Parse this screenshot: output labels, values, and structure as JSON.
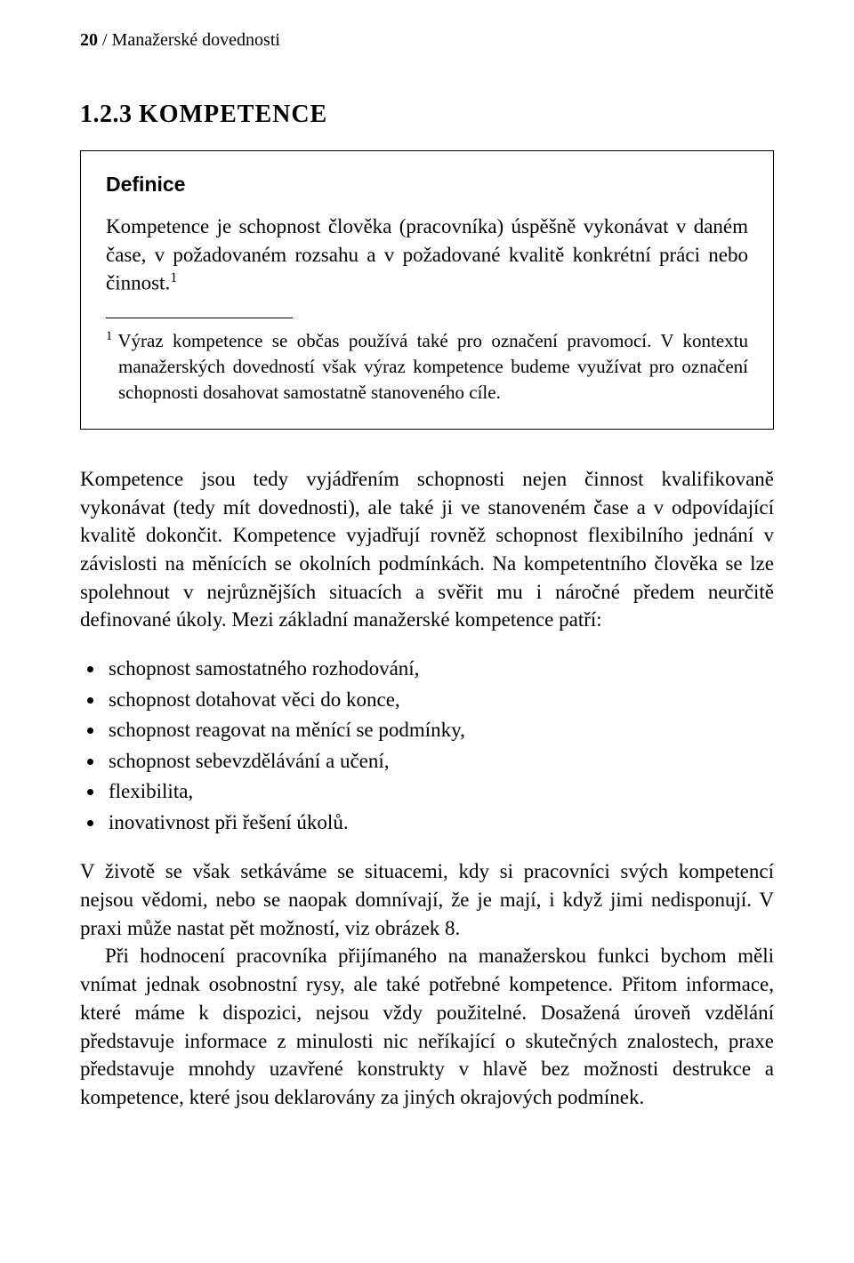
{
  "header": {
    "page_number": "20",
    "sep": " /  ",
    "running_title": "Manažerské dovednosti"
  },
  "section": {
    "number": "1.2.3",
    "title": "KOMPETENCE"
  },
  "definition": {
    "label": "Definice",
    "text": "Kompetence je schopnost člověka (pracovníka) úspěšně vykonávat v daném čase, v požadovaném rozsahu a v požadované kvalitě konkrétní práci nebo činnost.",
    "sup": "1",
    "footnote_marker": "1",
    "footnote_text": "Výraz kompetence se občas používá také pro označení pravomocí. V kontextu manažerských dovedností však výraz kompetence budeme využívat pro označení schopnosti dosahovat samostatně stanoveného cíle."
  },
  "body": {
    "para1": "Kompetence jsou tedy vyjádřením schopnosti nejen činnost kvalifikovaně vykonávat (tedy mít dovednosti), ale také ji ve stanoveném čase a v odpovídající kvalitě dokončit. Kompetence vyjadřují rovněž schopnost flexibilního jednání v závislosti na měnících se okolních podmínkách. Na kompetentního člověka se lze spolehnout v nejrůznějších situacích a svěřit mu i náročné předem neurčitě definované úkoly. Mezi základní manažerské kompetence patří:",
    "bullets": [
      "schopnost samostatného rozhodování,",
      "schopnost dotahovat věci do konce,",
      "schopnost reagovat na měnící se podmínky,",
      "schopnost sebevzdělávání a učení,",
      "flexibilita,",
      "inovativnost při řešení úkolů."
    ],
    "closing1": "V životě se však setkáváme se situacemi, kdy si pracovníci svých kompetencí nejsou vědomi, nebo se naopak domnívají, že je mají, i když jimi nedisponují. V praxi může nastat pět možností, viz obrázek 8.",
    "closing2": "Při hodnocení pracovníka přijímaného na manažerskou funkci bychom měli vnímat jednak osobnostní rysy, ale také potřebné kompetence. Přitom informace, které máme k dispozici, nejsou vždy použitelné. Dosažená úroveň vzdělání představuje informace z minulosti nic neříkající o skutečných znalostech, praxe představuje mnohdy uzavřené konstrukty v hlavě bez možnosti destrukce a kompetence, které jsou deklarovány za jiných okrajových podmínek."
  }
}
